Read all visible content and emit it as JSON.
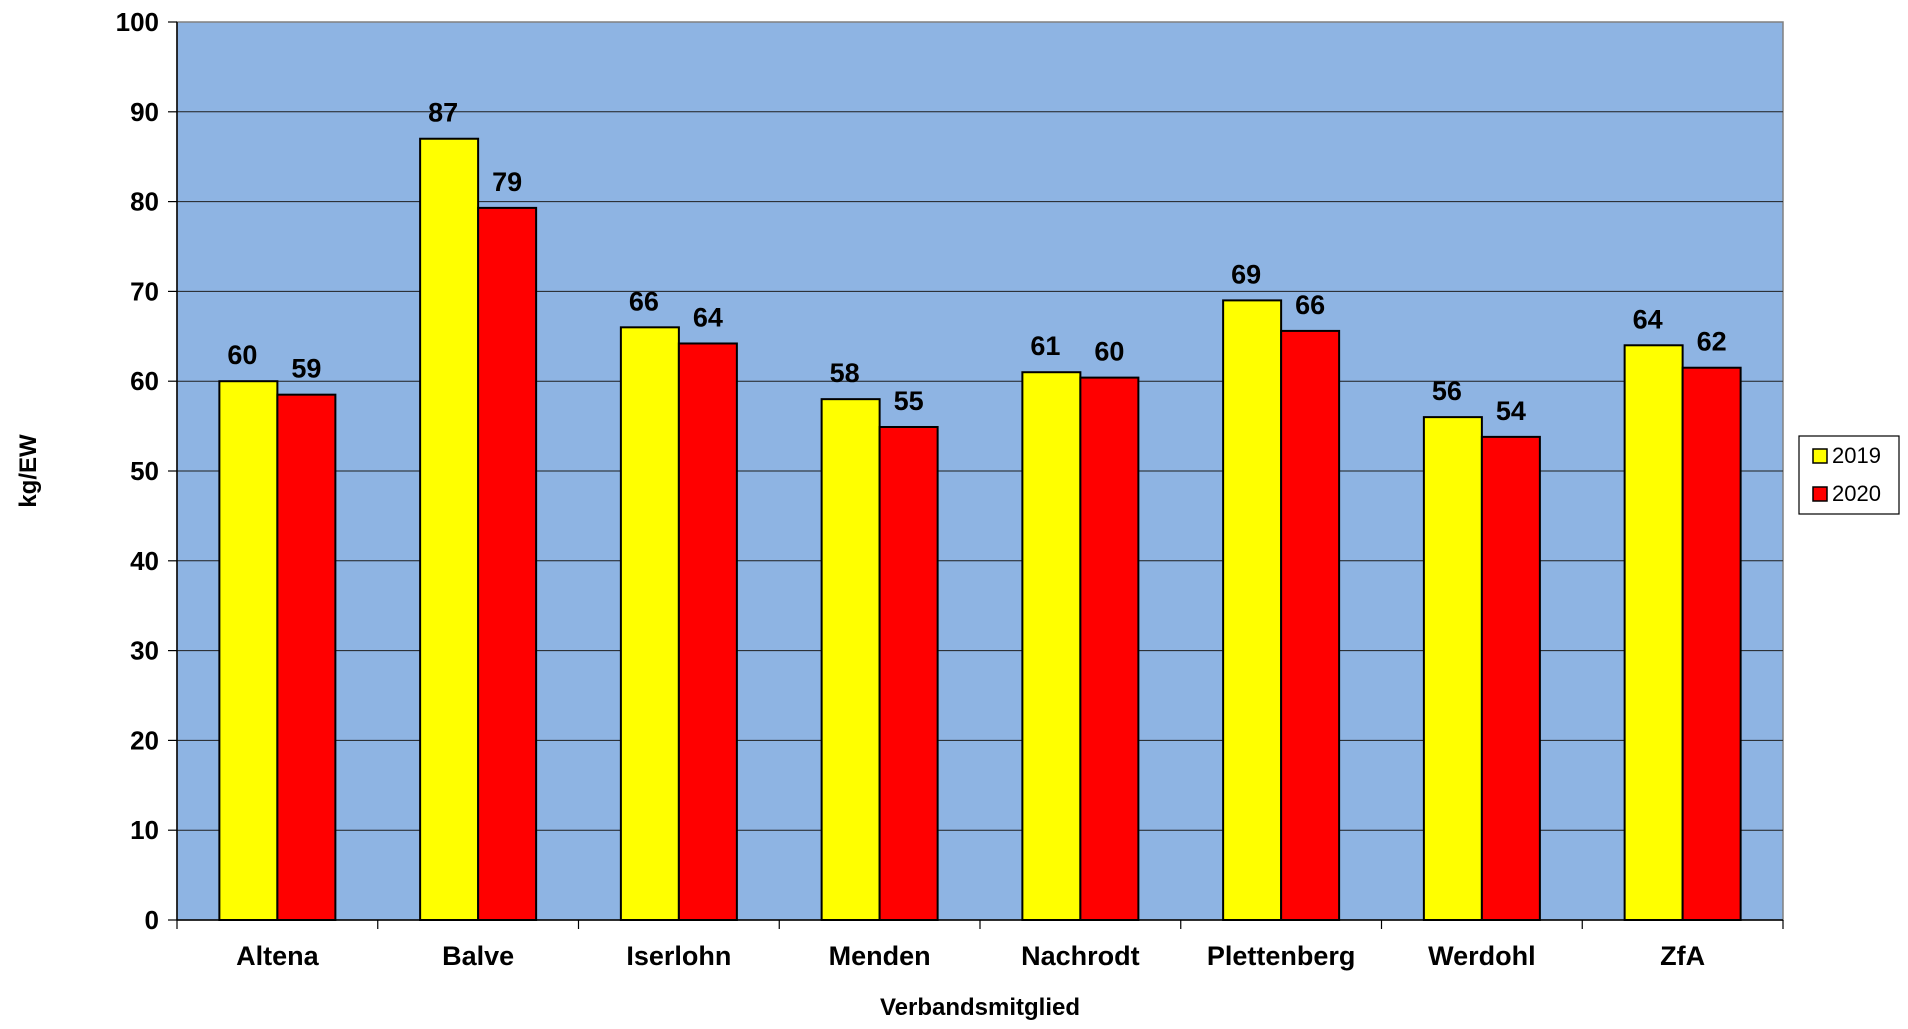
{
  "chart_data": {
    "type": "bar",
    "title": "",
    "xlabel": "Verbandsmitglied",
    "ylabel": "kg/EW",
    "ylim": [
      0,
      100
    ],
    "yticks": [
      0,
      10,
      20,
      30,
      40,
      50,
      60,
      70,
      80,
      90,
      100
    ],
    "grid": true,
    "legend_position": "right",
    "categories": [
      "Altena",
      "Balve",
      "Iserlohn",
      "Menden",
      "Nachrodt",
      "Plettenberg",
      "Werdohl",
      "ZfA"
    ],
    "series": [
      {
        "name": "2019",
        "color": "#FFFF00",
        "values": [
          60,
          87,
          66,
          58,
          61,
          69,
          56,
          64
        ],
        "labels": [
          "60",
          "87",
          "66",
          "58",
          "61",
          "69",
          "56",
          "64"
        ]
      },
      {
        "name": "2020",
        "color": "#FF0000",
        "values": [
          58.5,
          79.3,
          64.2,
          54.9,
          60.4,
          65.6,
          53.8,
          61.5
        ],
        "labels": [
          "59",
          "79",
          "64",
          "55",
          "60",
          "66",
          "54",
          "62"
        ]
      }
    ],
    "plot_background": "#8EB4E3"
  }
}
